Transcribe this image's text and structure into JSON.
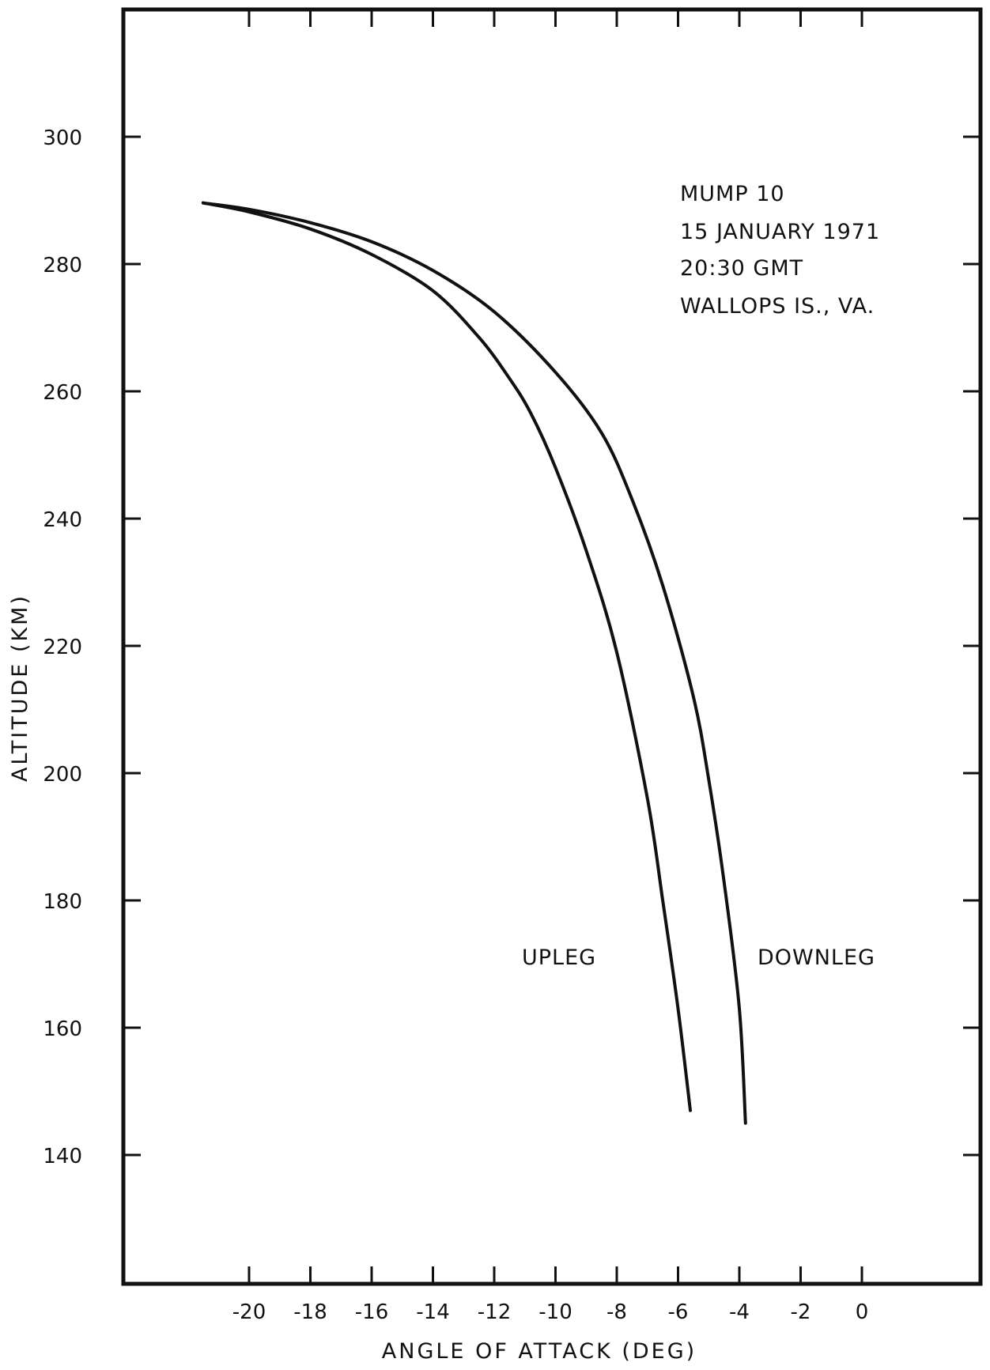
{
  "chart_data": {
    "type": "line",
    "title": "",
    "xlabel": "ANGLE OF ATTACK (DEG)",
    "ylabel": "ALTITUDE (KM)",
    "xlim": [
      -23,
      0
    ],
    "ylim": [
      120,
      320
    ],
    "x_ticks": [
      -20,
      -18,
      -16,
      -14,
      -12,
      -10,
      -8,
      -6,
      -4,
      -2,
      0
    ],
    "x_tick_labels": [
      "-20",
      "-18",
      "-16",
      "-14",
      "-12",
      "-10",
      "-8",
      "-6",
      "-4",
      "-2",
      "0"
    ],
    "y_ticks": [
      140,
      160,
      180,
      200,
      220,
      240,
      260,
      280,
      300
    ],
    "y_tick_labels": [
      "140",
      "160",
      "180",
      "200",
      "220",
      "240",
      "260",
      "280",
      "300"
    ],
    "grid": false,
    "annotation_lines": [
      "MUMP 10",
      "15 JANUARY 1971",
      "20:30 GMT",
      "WALLOPS IS., VA."
    ],
    "series": [
      {
        "name": "UPLEG",
        "points": [
          [
            -21.5,
            289.6
          ],
          [
            -20.0,
            288.2
          ],
          [
            -18.0,
            285.5
          ],
          [
            -16.0,
            281.5
          ],
          [
            -14.0,
            275.8
          ],
          [
            -12.5,
            268.5
          ],
          [
            -11.5,
            262.0
          ],
          [
            -10.8,
            256.5
          ],
          [
            -10.0,
            248.0
          ],
          [
            -9.0,
            235.0
          ],
          [
            -8.0,
            219.0
          ],
          [
            -7.0,
            196.0
          ],
          [
            -6.5,
            180.0
          ],
          [
            -6.0,
            163.0
          ],
          [
            -5.6,
            147.0
          ]
        ]
      },
      {
        "name": "DOWNLEG",
        "points": [
          [
            -21.5,
            289.6
          ],
          [
            -20.0,
            288.6
          ],
          [
            -18.0,
            286.5
          ],
          [
            -16.0,
            283.5
          ],
          [
            -14.0,
            279.0
          ],
          [
            -12.0,
            272.5
          ],
          [
            -10.0,
            263.0
          ],
          [
            -8.5,
            253.5
          ],
          [
            -7.5,
            243.0
          ],
          [
            -6.5,
            229.5
          ],
          [
            -5.5,
            212.0
          ],
          [
            -5.0,
            199.0
          ],
          [
            -4.5,
            183.0
          ],
          [
            -4.0,
            163.0
          ],
          [
            -3.8,
            145.0
          ]
        ]
      }
    ]
  }
}
